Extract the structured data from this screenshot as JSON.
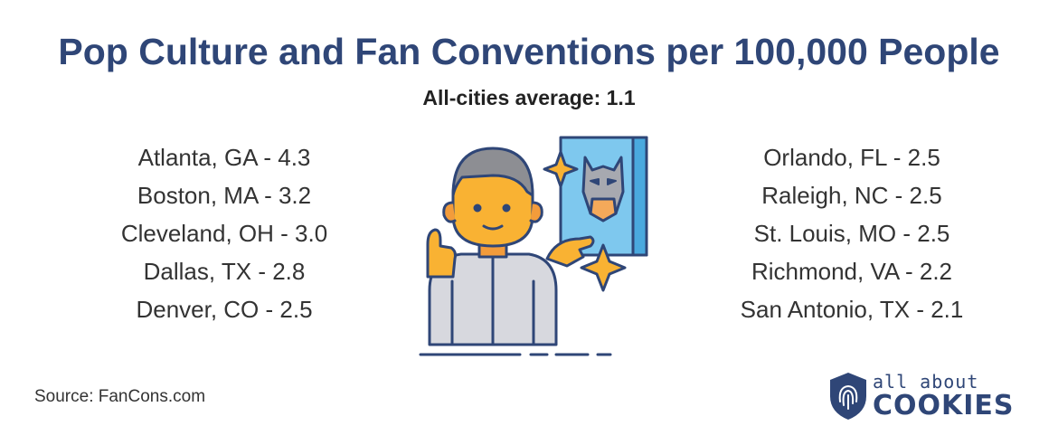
{
  "chart_data": {
    "type": "table",
    "title": "Pop Culture and Fan Conventions per 100,000 People",
    "subtitle": "All-cities average: 1.1",
    "average": 1.1,
    "unit": "conventions per 100,000 people",
    "rows": [
      {
        "city": "Atlanta, GA",
        "value": 4.3,
        "label": "Atlanta, GA - 4.3"
      },
      {
        "city": "Boston, MA",
        "value": 3.2,
        "label": "Boston, MA - 3.2"
      },
      {
        "city": "Cleveland, OH",
        "value": 3.0,
        "label": "Cleveland, OH - 3.0"
      },
      {
        "city": "Dallas, TX",
        "value": 2.8,
        "label": "Dallas, TX - 2.8"
      },
      {
        "city": "Denver, CO",
        "value": 2.5,
        "label": "Denver, CO - 2.5"
      },
      {
        "city": "Orlando, FL",
        "value": 2.5,
        "label": "Orlando, FL - 2.5"
      },
      {
        "city": "Raleigh, NC",
        "value": 2.5,
        "label": "Raleigh, NC - 2.5"
      },
      {
        "city": "St. Louis, MO",
        "value": 2.5,
        "label": "St. Louis, MO - 2.5"
      },
      {
        "city": "Richmond, VA",
        "value": 2.2,
        "label": "Richmond, VA - 2.2"
      },
      {
        "city": "San Antonio, TX",
        "value": 2.1,
        "label": "San Antonio, TX - 2.1"
      }
    ]
  },
  "source": "Source: FanCons.com",
  "logo": {
    "top_text": "all about",
    "bottom_text": "COOKIES"
  },
  "colors": {
    "title": "#2f4677",
    "text": "#333333",
    "accent": "#f9b233"
  }
}
